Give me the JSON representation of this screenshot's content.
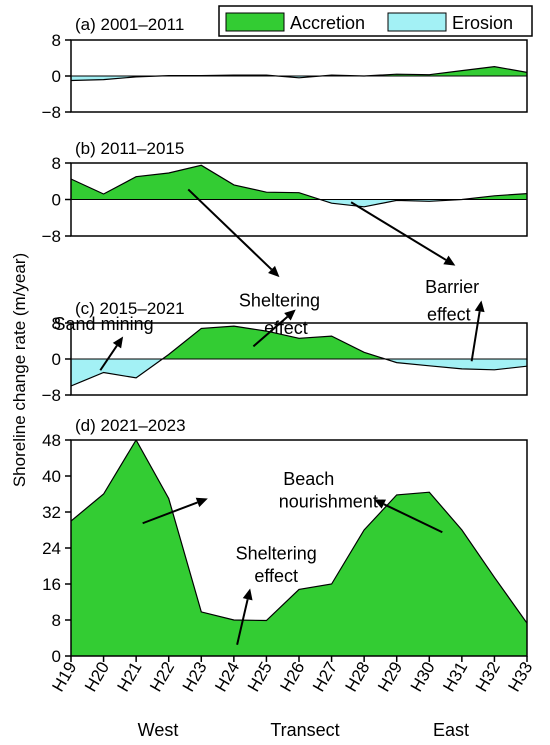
{
  "y_axis_label": "Shoreline change rate (m/year)",
  "x_axis_label": "Transect",
  "x_region_left": "West",
  "x_region_right": "East",
  "legend": {
    "accretion": "Accretion",
    "erosion": "Erosion",
    "accretion_color": "#33cc33",
    "erosion_color": "#a3f1f5"
  },
  "chart_data": [
    {
      "type": "area",
      "title": "(a) 2001–2011",
      "ylim": [
        -8,
        8
      ],
      "yticks": [
        8,
        0,
        -8
      ],
      "categories": [
        "H19",
        "H20",
        "H21",
        "H22",
        "H23",
        "H24",
        "H25",
        "H26",
        "H27",
        "H28",
        "H29",
        "H30",
        "H31",
        "H32",
        "H33"
      ],
      "values": [
        -1.0,
        -0.8,
        -0.2,
        0.1,
        0.1,
        0.2,
        0.2,
        -0.4,
        0.2,
        0.0,
        0.4,
        0.3,
        1.2,
        2.1,
        0.8
      ],
      "annotations": []
    },
    {
      "type": "area",
      "title": "(b) 2011–2015",
      "ylim": [
        -8,
        8
      ],
      "yticks": [
        8,
        0,
        -8
      ],
      "categories": [
        "H19",
        "H20",
        "H21",
        "H22",
        "H23",
        "H24",
        "H25",
        "H26",
        "H27",
        "H28",
        "H29",
        "H30",
        "H31",
        "H32",
        "H33"
      ],
      "values": [
        4.5,
        1.2,
        5.0,
        5.8,
        7.5,
        3.2,
        1.6,
        1.5,
        -0.8,
        -1.6,
        -0.2,
        -0.4,
        0.0,
        0.8,
        1.3
      ],
      "annotations": [
        {
          "text": "Sheltering",
          "x_cat": 6.4,
          "y": -23.5,
          "arrow_from": [
            3.6,
            2.2
          ],
          "arrow_to": [
            6.4,
            -17.0
          ]
        },
        {
          "text": "effect",
          "x_cat": 6.6,
          "y": -29.5
        },
        {
          "text": "Barrier",
          "x_cat": 11.7,
          "y": -20.5,
          "arrow_from": [
            8.6,
            -0.6
          ],
          "arrow_to": [
            11.8,
            -14.5
          ]
        },
        {
          "text": "effect",
          "x_cat": 11.6,
          "y": -26.5
        }
      ]
    },
    {
      "type": "area",
      "title": "(c) 2015–2021",
      "ylim": [
        -8,
        8
      ],
      "yticks": [
        8,
        0,
        -8
      ],
      "categories": [
        "H19",
        "H20",
        "H21",
        "H22",
        "H23",
        "H24",
        "H25",
        "H26",
        "H27",
        "H28",
        "H29",
        "H30",
        "H31",
        "H32",
        "H33"
      ],
      "values": [
        -6.0,
        -3.0,
        -4.2,
        1.0,
        6.8,
        7.3,
        6.2,
        4.6,
        5.1,
        1.5,
        -0.8,
        -1.5,
        -2.2,
        -2.4,
        -1.6
      ],
      "annotations": [
        {
          "text": "Sand mining",
          "x_cat": 1.0,
          "y": 6.5,
          "arrow_from": [
            0.9,
            -2.5
          ],
          "arrow_to": [
            1.6,
            5.0
          ]
        },
        {
          "text": "Barrier effect arrow",
          "hidden_label": true,
          "arrow_from": [
            12.3,
            -0.5
          ],
          "arrow_to": [
            12.6,
            13.0
          ]
        },
        {
          "text": "Sheltering effect arrow",
          "hidden_label": true,
          "arrow_from": [
            5.6,
            2.8
          ],
          "arrow_to": [
            6.9,
            11.0
          ]
        }
      ]
    },
    {
      "type": "area",
      "title": "(d) 2021–2023",
      "ylim": [
        0,
        50
      ],
      "yticks": [
        48,
        40,
        32,
        24,
        16,
        8,
        0
      ],
      "categories": [
        "H19",
        "H20",
        "H21",
        "H22",
        "H23",
        "H24",
        "H25",
        "H26",
        "H27",
        "H28",
        "H29",
        "H30",
        "H31",
        "H32",
        "H33"
      ],
      "values": [
        30.0,
        36.0,
        48.0,
        35.0,
        9.8,
        8.0,
        7.9,
        14.8,
        16.0,
        28.0,
        35.8,
        36.4,
        28.0,
        17.5,
        7.3
      ],
      "annotations": [
        {
          "text": "Beach",
          "x_cat": 7.3,
          "y": 38.0
        },
        {
          "text": "nourishment",
          "x_cat": 7.9,
          "y": 33.0
        },
        {
          "text": "Beach nourishment arrow left",
          "hidden_label": true,
          "arrow_from": [
            2.2,
            29.5
          ],
          "arrow_to": [
            4.2,
            35.0
          ]
        },
        {
          "text": "Beach nourishment arrow right",
          "hidden_label": true,
          "arrow_from": [
            11.4,
            27.5
          ],
          "arrow_to": [
            9.3,
            34.8
          ]
        },
        {
          "text": "Sheltering",
          "x_cat": 6.3,
          "y": 21.5
        },
        {
          "text": "effect",
          "x_cat": 6.3,
          "y": 16.5
        },
        {
          "text": "Sheltering effect arrow",
          "hidden_label": true,
          "arrow_from": [
            5.1,
            2.5
          ],
          "arrow_to": [
            5.5,
            15.0
          ]
        }
      ]
    }
  ]
}
